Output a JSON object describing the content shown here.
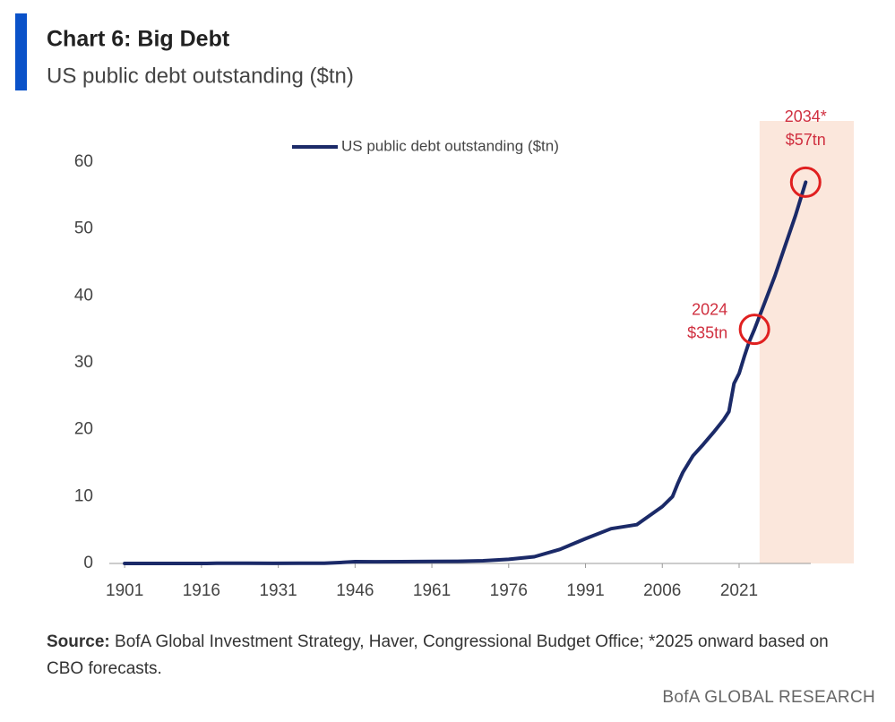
{
  "chart_data": {
    "type": "line",
    "title": "Chart 6: Big Debt",
    "subtitle": "US public debt outstanding ($tn)",
    "x": [
      1901,
      1910,
      1916,
      1917,
      1918,
      1919,
      1925,
      1930,
      1935,
      1940,
      1943,
      1946,
      1950,
      1955,
      1961,
      1966,
      1971,
      1976,
      1981,
      1986,
      1991,
      1996,
      2001,
      2006,
      2008,
      2009,
      2010,
      2012,
      2014,
      2016,
      2018,
      2019,
      2020,
      2021,
      2022,
      2023,
      2024,
      2026,
      2028,
      2030,
      2032,
      2034
    ],
    "series": [
      {
        "name": "US public debt outstanding ($tn)",
        "color": "#1b2a68",
        "values": [
          0.001,
          0.001,
          0.001,
          0.003,
          0.012,
          0.027,
          0.021,
          0.016,
          0.029,
          0.043,
          0.137,
          0.27,
          0.257,
          0.273,
          0.289,
          0.32,
          0.4,
          0.62,
          1.0,
          2.1,
          3.7,
          5.2,
          5.8,
          8.5,
          10.0,
          11.9,
          13.6,
          16.1,
          17.8,
          19.6,
          21.5,
          22.7,
          26.9,
          28.4,
          30.9,
          33.2,
          35,
          39,
          43,
          47.5,
          52,
          57
        ]
      }
    ],
    "xlim": [
      1898,
      2035
    ],
    "ylim": [
      0,
      60
    ],
    "xticks": [
      1901,
      1916,
      1931,
      1946,
      1961,
      1976,
      1991,
      2006,
      2021
    ],
    "yticks": [
      0,
      10,
      20,
      30,
      40,
      50,
      60
    ],
    "grid": false,
    "forecast_from": 2025,
    "annotations": [
      {
        "x": 2024,
        "y": 35,
        "label": "2024",
        "value_label": "$35tn"
      },
      {
        "x": 2034,
        "y": 57,
        "label": "2034*",
        "value_label": "$57tn"
      }
    ],
    "source_label": "Source:",
    "source": "BofA Global Investment Strategy, Haver, Congressional Budget Office; *2025 onward based on CBO forecasts.",
    "footer": "BofA GLOBAL RESEARCH"
  }
}
